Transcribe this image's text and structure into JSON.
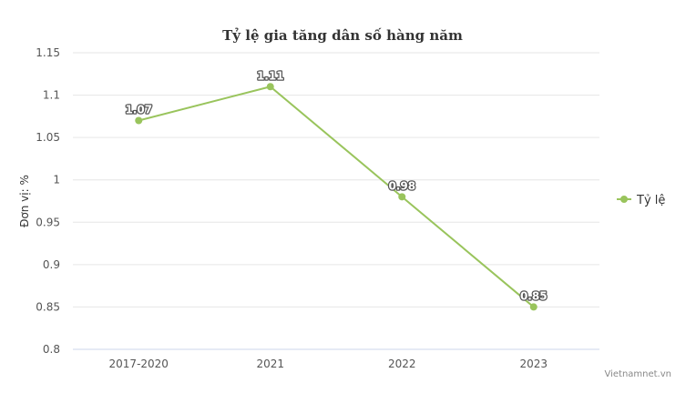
{
  "chart_data": {
    "type": "line",
    "title": "Tỷ lệ gia tăng dân số hàng năm",
    "ylabel": "Đơn vị: %",
    "xlabel": "",
    "categories": [
      "2017-2020",
      "2021",
      "2022",
      "2023"
    ],
    "series": [
      {
        "name": "Tỷ lệ",
        "values": [
          1.07,
          1.11,
          0.98,
          0.85
        ],
        "color": "#99c45c"
      }
    ],
    "data_labels": [
      "1.07",
      "1.11",
      "0.98",
      "0.85"
    ],
    "ylim": [
      0.8,
      1.15
    ],
    "yticks": [
      0.8,
      0.85,
      0.9,
      0.95,
      1,
      1.05,
      1.1,
      1.15
    ],
    "ytick_labels": [
      "0.8",
      "0.85",
      "0.9",
      "0.95",
      "1",
      "1.05",
      "1.1",
      "1.15"
    ],
    "grid": true,
    "legend_position": "right",
    "credit": "Vietnamnet.vn"
  }
}
